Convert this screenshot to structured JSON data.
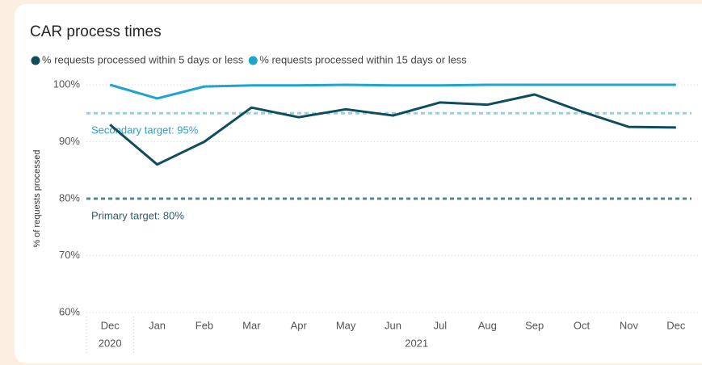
{
  "chart_data": {
    "type": "line",
    "title": "CAR process times",
    "y_label": "% of requests processed",
    "categories": [
      "Dec",
      "Jan",
      "Feb",
      "Mar",
      "Apr",
      "May",
      "Jun",
      "Jul",
      "Aug",
      "Sep",
      "Oct",
      "Nov",
      "Dec"
    ],
    "year_groups": [
      {
        "label": "2020",
        "count": 1
      },
      {
        "label": "2021",
        "count": 12
      }
    ],
    "series": [
      {
        "name": "% requests processed within 5 days or less",
        "color": "#0f4c5c",
        "values": [
          93,
          86,
          90,
          96,
          94.3,
          95.7,
          94.6,
          96.9,
          96.5,
          98.3,
          95.3,
          92.6,
          92.5
        ]
      },
      {
        "name": "% requests processed within 15 days or less",
        "color": "#1fa3cf",
        "values": [
          100,
          97.6,
          99.7,
          99.9,
          99.9,
          100,
          99.9,
          99.9,
          100,
          100,
          100,
          100,
          100
        ]
      }
    ],
    "targets": [
      {
        "value": 95,
        "label": "Secondary target: 95%",
        "color": "#8fd2e8",
        "text_color": "#2a9fc8"
      },
      {
        "value": 80,
        "label": "Primary target: 80%",
        "color": "#4f8795",
        "text_color": "#2d5e6b"
      }
    ],
    "ylim": [
      60,
      100
    ],
    "yticks": [
      {
        "value": 60,
        "label": "60%"
      },
      {
        "value": 70,
        "label": "70%"
      },
      {
        "value": 80,
        "label": "80%"
      },
      {
        "value": 90,
        "label": "90%"
      },
      {
        "value": 100,
        "label": "100%"
      }
    ],
    "grid": true
  }
}
